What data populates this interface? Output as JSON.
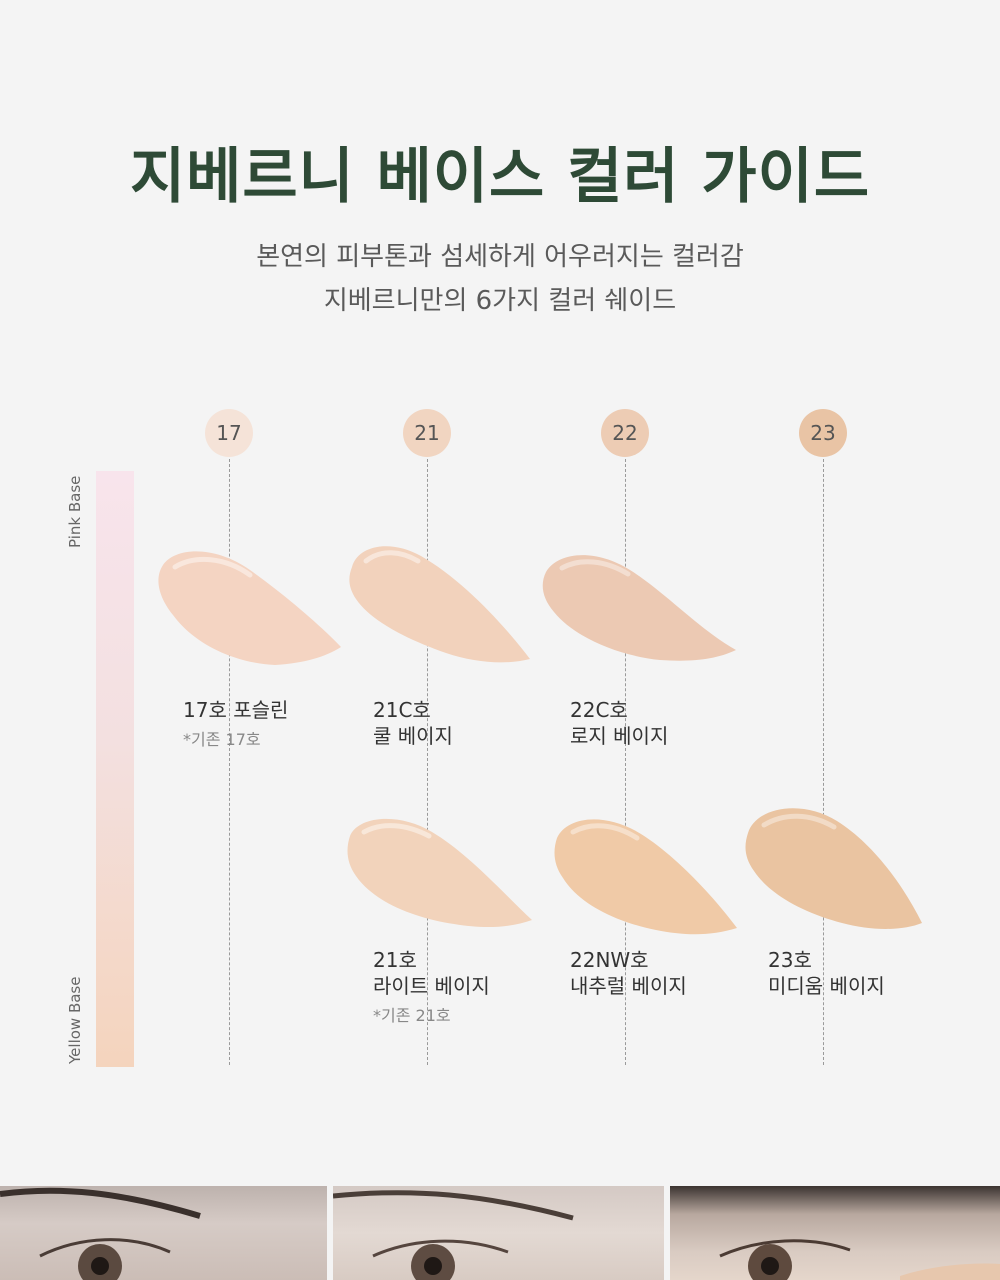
{
  "header": {
    "title": "지베르니 베이스 컬러 가이드",
    "subtitle_line1": "본연의 피부톤과 섬세하게 어우러지는 컬러감",
    "subtitle_line2": "지베르니만의 6가지 컬러 쉐이드"
  },
  "axis": {
    "top_label": "Pink Base",
    "bottom_label": "Yellow Base"
  },
  "columns": [
    {
      "number": "17",
      "color": "#f5e3d8"
    },
    {
      "number": "21",
      "color": "#f1d5c1"
    },
    {
      "number": "22",
      "color": "#edccb4"
    },
    {
      "number": "23",
      "color": "#e9c4a5"
    }
  ],
  "shades": [
    {
      "code": "17호 포슬린",
      "name": "",
      "note": "*기존 17호",
      "color": "#f4d4c2"
    },
    {
      "code": "21C호",
      "name": "쿨 베이지",
      "note": "",
      "color": "#f2d2bc"
    },
    {
      "code": "22C호",
      "name": "로지 베이지",
      "note": "",
      "color": "#ecc9b3"
    },
    {
      "code": "21호",
      "name": "라이트 베이지",
      "note": "*기존 21호",
      "color": "#f2d3bb"
    },
    {
      "code": "22NW호",
      "name": "내추럴 베이지",
      "note": "",
      "color": "#f0caa7"
    },
    {
      "code": "23호",
      "name": "미디움 베이지",
      "note": "",
      "color": "#eac4a1"
    }
  ],
  "photos": [
    {
      "name": "eye-photo-1"
    },
    {
      "name": "eye-photo-2"
    },
    {
      "name": "eye-photo-3"
    }
  ]
}
